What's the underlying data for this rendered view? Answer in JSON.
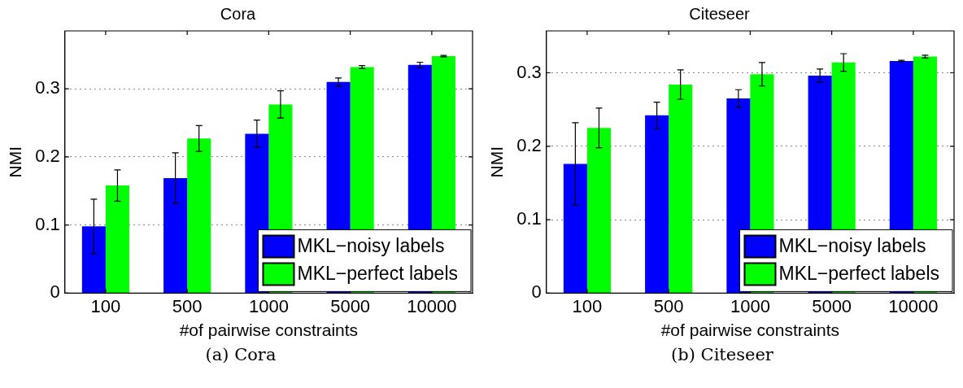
{
  "chart_data": [
    {
      "type": "bar",
      "title": "Cora",
      "xlabel": "#of pairwise constraints",
      "ylabel": "NMI",
      "categories": [
        "100",
        "500",
        "1000",
        "5000",
        "10000"
      ],
      "series": [
        {
          "name": "MKL−noisy labels",
          "color": "#0000ff",
          "values": [
            0.098,
            0.169,
            0.234,
            0.31,
            0.335
          ],
          "errors": [
            0.04,
            0.037,
            0.02,
            0.006,
            0.004
          ]
        },
        {
          "name": "MKL−perfect labels",
          "color": "#00ff00",
          "values": [
            0.158,
            0.227,
            0.277,
            0.332,
            0.348
          ],
          "errors": [
            0.023,
            0.019,
            0.02,
            0.002,
            0.001
          ]
        }
      ],
      "ylim": [
        0,
        0.385
      ],
      "yticks": [
        0,
        0.1,
        0.2,
        0.3
      ],
      "grid": "y",
      "legend": "bottom right",
      "annotations": [
        "(a) Cora"
      ]
    },
    {
      "type": "bar",
      "title": "Citeseer",
      "xlabel": "#of pairwise constraints",
      "ylabel": "NMI",
      "categories": [
        "100",
        "500",
        "1000",
        "5000",
        "10000"
      ],
      "series": [
        {
          "name": "MKL−noisy labels",
          "color": "#0000ff",
          "values": [
            0.176,
            0.242,
            0.265,
            0.296,
            0.316
          ],
          "errors": [
            0.056,
            0.018,
            0.012,
            0.009,
            0.001
          ]
        },
        {
          "name": "MKL−perfect labels",
          "color": "#00ff00",
          "values": [
            0.225,
            0.284,
            0.298,
            0.314,
            0.322
          ],
          "errors": [
            0.027,
            0.02,
            0.016,
            0.012,
            0.002
          ]
        }
      ],
      "ylim": [
        0,
        0.357
      ],
      "yticks": [
        0,
        0.1,
        0.2,
        0.3
      ],
      "grid": "y",
      "legend": "bottom right",
      "annotations": [
        "(b) Citeseer"
      ]
    }
  ]
}
